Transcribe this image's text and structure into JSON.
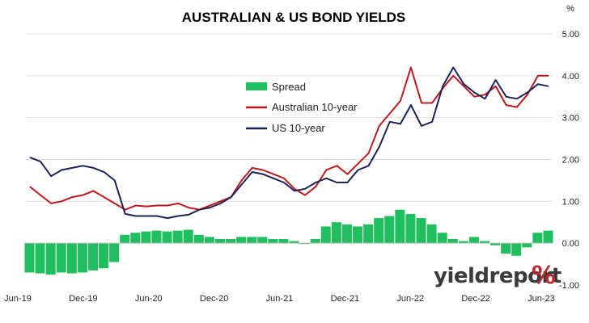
{
  "chart_data": {
    "type": "line",
    "title": "AUSTRALIAN & US BOND YIELDS",
    "unit_label": "%",
    "logo": {
      "text": "yieldreport",
      "symbol": "%",
      "symbol_color": "#c0282d"
    },
    "x_ticks": [
      "Jun-19",
      "Dec-19",
      "Jun-20",
      "Dec-20",
      "Jun-21",
      "Dec-21",
      "Jun-22",
      "Dec-22",
      "Jun-23"
    ],
    "y_ticks": [
      "5.00",
      "4.00",
      "3.00",
      "2.00",
      "1.00",
      "0.00",
      "-1.00"
    ],
    "ylim": [
      -1.0,
      5.0
    ],
    "grid": "horizontal",
    "legend_position": "center",
    "x": [
      "2019-06",
      "2019-07",
      "2019-08",
      "2019-09",
      "2019-10",
      "2019-11",
      "2019-12",
      "2020-01",
      "2020-02",
      "2020-03",
      "2020-04",
      "2020-05",
      "2020-06",
      "2020-07",
      "2020-08",
      "2020-09",
      "2020-10",
      "2020-11",
      "2020-12",
      "2021-01",
      "2021-02",
      "2021-03",
      "2021-04",
      "2021-05",
      "2021-06",
      "2021-07",
      "2021-08",
      "2021-09",
      "2021-10",
      "2021-11",
      "2021-12",
      "2022-01",
      "2022-02",
      "2022-03",
      "2022-04",
      "2022-05",
      "2022-06",
      "2022-07",
      "2022-08",
      "2022-09",
      "2022-10",
      "2022-11",
      "2022-12",
      "2023-01",
      "2023-02",
      "2023-03",
      "2023-04",
      "2023-05",
      "2023-06",
      "2023-07"
    ],
    "series": [
      {
        "name": "Spread",
        "kind": "bar",
        "color": "#1fbf5f",
        "values": [
          -0.7,
          -0.72,
          -0.75,
          -0.7,
          -0.72,
          -0.7,
          -0.65,
          -0.6,
          -0.45,
          0.2,
          0.25,
          0.28,
          0.3,
          0.28,
          0.3,
          0.32,
          0.2,
          0.15,
          0.1,
          0.1,
          0.15,
          0.15,
          0.15,
          0.1,
          0.1,
          0.05,
          0.0,
          0.1,
          0.4,
          0.5,
          0.45,
          0.4,
          0.45,
          0.6,
          0.65,
          0.8,
          0.7,
          0.6,
          0.45,
          0.25,
          0.1,
          0.05,
          0.15,
          0.05,
          -0.05,
          -0.25,
          -0.3,
          -0.1,
          0.25,
          0.3
        ]
      },
      {
        "name": "Australian 10-year",
        "kind": "line",
        "color": "#c0171d",
        "values": [
          1.35,
          1.15,
          0.95,
          1.0,
          1.1,
          1.15,
          1.25,
          1.1,
          0.95,
          0.8,
          0.9,
          0.88,
          0.9,
          0.9,
          0.95,
          0.85,
          0.8,
          0.9,
          1.0,
          1.1,
          1.5,
          1.8,
          1.75,
          1.65,
          1.55,
          1.3,
          1.15,
          1.35,
          1.75,
          1.85,
          1.65,
          1.9,
          2.15,
          2.8,
          3.1,
          3.4,
          4.2,
          3.35,
          3.35,
          3.7,
          4.0,
          3.75,
          3.5,
          3.55,
          3.75,
          3.3,
          3.25,
          3.55,
          4.0,
          4.0
        ]
      },
      {
        "name": "US 10-year",
        "kind": "line",
        "color": "#1a2357",
        "values": [
          2.05,
          1.95,
          1.6,
          1.75,
          1.8,
          1.85,
          1.8,
          1.7,
          1.5,
          0.7,
          0.65,
          0.65,
          0.65,
          0.6,
          0.65,
          0.68,
          0.8,
          0.85,
          0.95,
          1.1,
          1.4,
          1.7,
          1.65,
          1.55,
          1.45,
          1.25,
          1.3,
          1.45,
          1.55,
          1.45,
          1.45,
          1.75,
          1.85,
          2.3,
          2.9,
          2.85,
          3.3,
          2.8,
          2.9,
          3.75,
          4.2,
          3.8,
          3.6,
          3.45,
          3.9,
          3.5,
          3.45,
          3.6,
          3.8,
          3.75
        ]
      }
    ]
  }
}
